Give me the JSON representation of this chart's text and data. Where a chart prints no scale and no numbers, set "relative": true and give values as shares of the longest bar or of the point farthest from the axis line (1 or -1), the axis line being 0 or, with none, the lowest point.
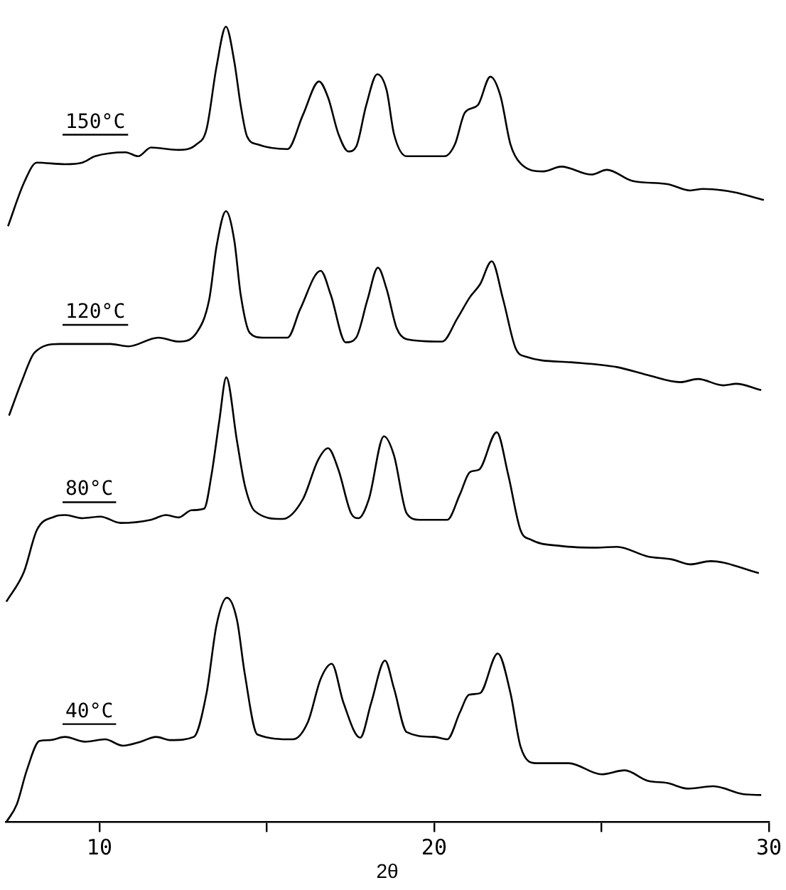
{
  "chart_data": {
    "type": "line",
    "relative": true,
    "xlabel": "2θ",
    "xlim": [
      7.2,
      30
    ],
    "xticks": [
      10,
      {
        "value": 15,
        "label": null
      },
      20,
      {
        "value": 25,
        "label": null
      },
      30
    ],
    "grid": false,
    "legend": false,
    "marker": "none",
    "line_style": "solid",
    "series": [
      {
        "name": "150°C",
        "color": "#000000",
        "x": [
          7.27,
          7.75,
          8.13,
          8.97,
          9.49,
          9.87,
          10.78,
          11.16,
          11.54,
          12.37,
          12.9,
          13.2,
          13.5,
          13.78,
          14.03,
          14.22,
          14.41,
          14.72,
          15.62,
          16.08,
          16.56,
          16.83,
          17.14,
          17.44,
          17.67,
          17.97,
          18.3,
          18.58,
          18.8,
          19.18,
          20.31,
          20.62,
          20.92,
          21.3,
          21.68,
          21.98,
          22.28,
          22.58,
          23.26,
          23.8,
          24.7,
          25.16,
          25.92,
          26.97,
          27.65,
          28.03,
          28.94,
          29.85
        ],
        "values": [
          0.749,
          0.804,
          0.829,
          0.827,
          0.829,
          0.837,
          0.842,
          0.837,
          0.848,
          0.845,
          0.852,
          0.871,
          0.95,
          1.0,
          0.956,
          0.901,
          0.862,
          0.852,
          0.846,
          0.889,
          0.931,
          0.911,
          0.865,
          0.843,
          0.849,
          0.901,
          0.94,
          0.92,
          0.865,
          0.837,
          0.837,
          0.852,
          0.892,
          0.901,
          0.937,
          0.913,
          0.852,
          0.828,
          0.818,
          0.824,
          0.814,
          0.82,
          0.806,
          0.802,
          0.794,
          0.796,
          0.792,
          0.782
        ]
      },
      {
        "name": "120°C",
        "color": "#000000",
        "x": [
          7.3,
          7.68,
          8.06,
          8.81,
          10.33,
          10.86,
          11.76,
          12.37,
          12.9,
          13.28,
          13.5,
          13.78,
          14.03,
          14.22,
          14.49,
          14.87,
          15.62,
          16.0,
          16.61,
          16.91,
          17.36,
          17.67,
          18.01,
          18.32,
          18.58,
          18.88,
          19.18,
          20.24,
          20.69,
          21.07,
          21.37,
          21.72,
          22.06,
          22.43,
          22.74,
          24.1,
          25.46,
          26.37,
          27.35,
          27.88,
          28.64,
          29.02,
          29.77
        ],
        "values": [
          0.511,
          0.554,
          0.59,
          0.601,
          0.601,
          0.598,
          0.609,
          0.604,
          0.615,
          0.657,
          0.724,
          0.768,
          0.731,
          0.663,
          0.615,
          0.609,
          0.609,
          0.645,
          0.693,
          0.663,
          0.603,
          0.609,
          0.657,
          0.697,
          0.67,
          0.621,
          0.607,
          0.604,
          0.633,
          0.66,
          0.676,
          0.705,
          0.657,
          0.596,
          0.585,
          0.578,
          0.572,
          0.562,
          0.553,
          0.557,
          0.549,
          0.551,
          0.543
        ]
      },
      {
        "name": "80°C",
        "color": "#000000",
        "x": [
          7.22,
          7.75,
          8.13,
          8.66,
          8.97,
          9.5,
          10.03,
          10.63,
          11.54,
          11.99,
          12.37,
          12.75,
          13.13,
          13.35,
          13.58,
          13.79,
          14.11,
          14.34,
          14.64,
          15.47,
          16.08,
          16.53,
          16.83,
          17.14,
          17.52,
          17.74,
          18.05,
          18.5,
          18.8,
          19.18,
          19.56,
          20.39,
          20.77,
          21.07,
          21.34,
          21.87,
          22.21,
          22.58,
          22.89,
          23.8,
          24.86,
          25.46,
          26.37,
          27.12,
          27.65,
          28.26,
          29.7
        ],
        "values": [
          0.277,
          0.315,
          0.367,
          0.384,
          0.386,
          0.382,
          0.384,
          0.376,
          0.38,
          0.386,
          0.383,
          0.392,
          0.394,
          0.437,
          0.504,
          0.559,
          0.479,
          0.424,
          0.391,
          0.381,
          0.406,
          0.455,
          0.47,
          0.443,
          0.388,
          0.382,
          0.406,
          0.485,
          0.461,
          0.388,
          0.38,
          0.38,
          0.412,
          0.44,
          0.443,
          0.49,
          0.437,
          0.367,
          0.355,
          0.347,
          0.345,
          0.346,
          0.334,
          0.33,
          0.324,
          0.328,
          0.313
        ]
      },
      {
        "name": "40°C",
        "color": "#000000",
        "x": [
          7.22,
          7.53,
          7.83,
          8.21,
          8.51,
          8.97,
          9.57,
          10.17,
          10.7,
          11.23,
          11.69,
          12.14,
          12.82,
          13.2,
          13.5,
          13.81,
          14.11,
          14.34,
          14.72,
          15.78,
          16.23,
          16.61,
          16.94,
          17.29,
          17.79,
          18.12,
          18.53,
          18.8,
          19.18,
          20.01,
          20.39,
          20.77,
          21.04,
          21.37,
          21.9,
          22.28,
          22.58,
          23.04,
          24.02,
          25.0,
          25.69,
          26.37,
          26.97,
          27.58,
          28.33,
          29.24,
          29.77
        ],
        "values": [
          0.0,
          0.022,
          0.065,
          0.102,
          0.103,
          0.107,
          0.101,
          0.104,
          0.096,
          0.101,
          0.107,
          0.103,
          0.107,
          0.162,
          0.248,
          0.282,
          0.254,
          0.187,
          0.11,
          0.104,
          0.126,
          0.18,
          0.199,
          0.15,
          0.106,
          0.15,
          0.203,
          0.168,
          0.113,
          0.107,
          0.104,
          0.138,
          0.16,
          0.162,
          0.212,
          0.162,
          0.095,
          0.074,
          0.074,
          0.06,
          0.065,
          0.052,
          0.049,
          0.042,
          0.045,
          0.035,
          0.034
        ]
      }
    ]
  }
}
